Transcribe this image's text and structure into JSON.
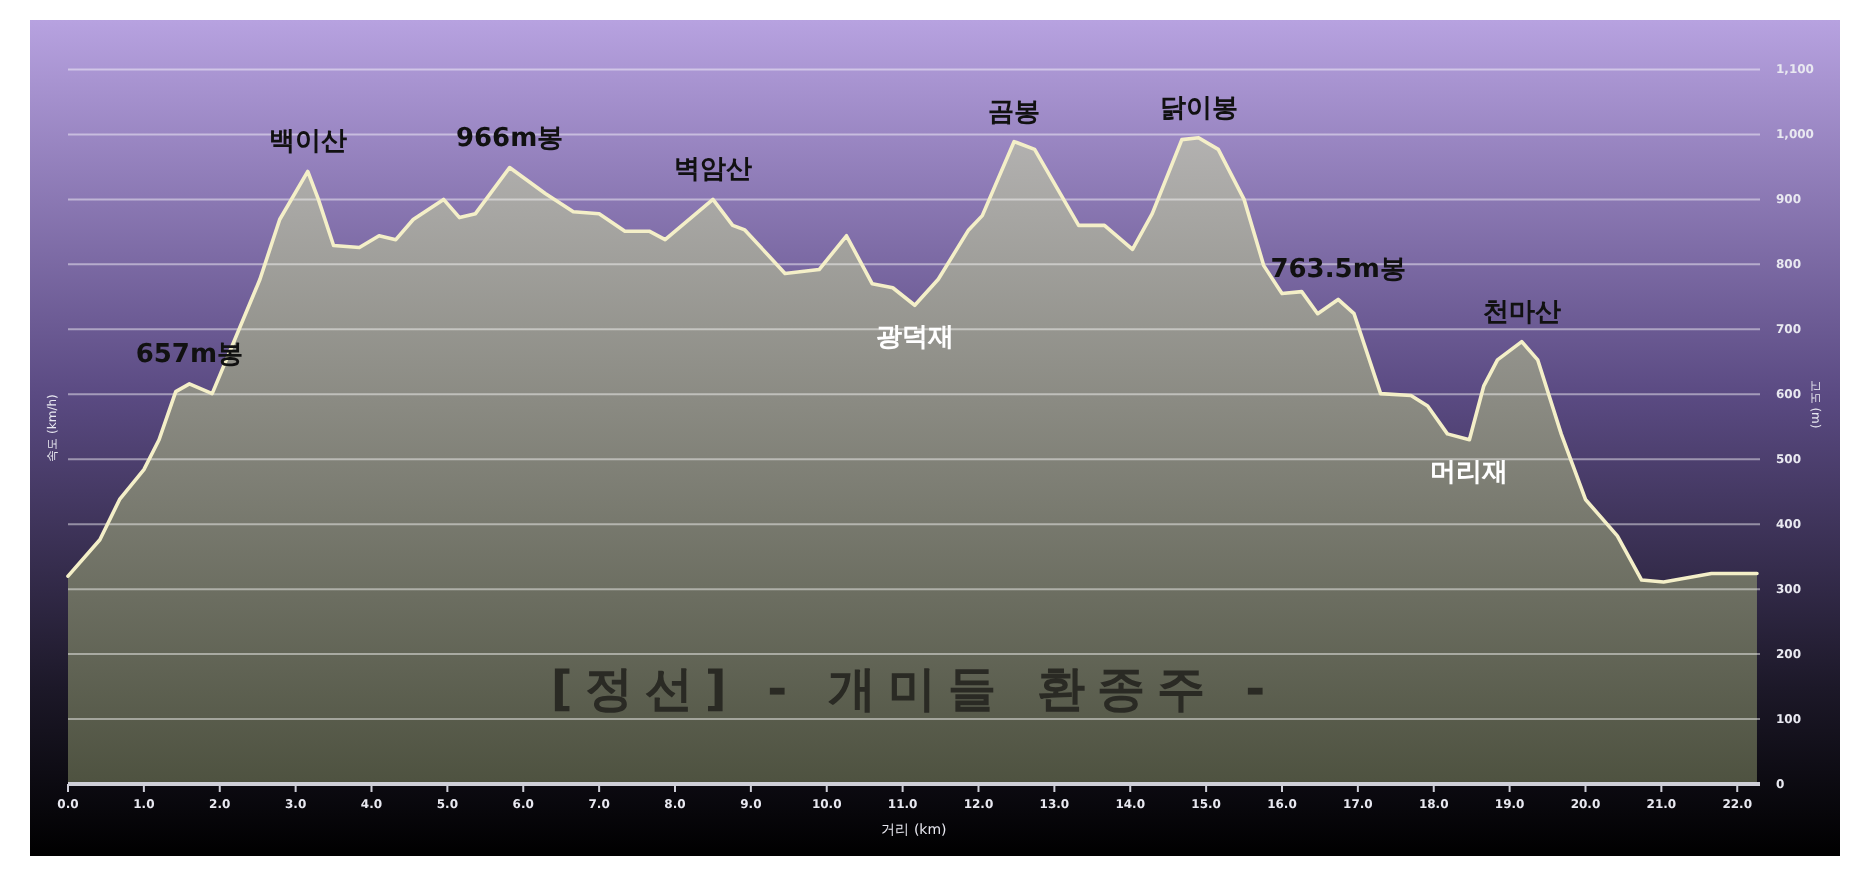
{
  "chart_data": {
    "type": "area",
    "title": "[정선] - 개미들 환종주 -",
    "xlabel": "거리 (km)",
    "ylabel": "고도 (m)",
    "x": [
      0,
      0.42,
      0.68,
      1.0,
      1.2,
      1.42,
      1.6,
      1.9,
      2.53,
      2.79,
      3.16,
      3.3,
      3.5,
      3.84,
      4.1,
      4.32,
      4.55,
      4.95,
      5.16,
      5.37,
      5.82,
      6.29,
      6.66,
      7.0,
      7.34,
      7.66,
      7.87,
      8.5,
      8.76,
      8.92,
      9.45,
      9.9,
      10.26,
      10.6,
      10.87,
      11.16,
      11.47,
      11.87,
      12.05,
      12.47,
      12.74,
      13.32,
      13.66,
      14.03,
      14.29,
      14.68,
      14.9,
      15.16,
      15.5,
      15.76,
      16.0,
      16.26,
      16.47,
      16.74,
      16.95,
      17.3,
      17.7,
      17.92,
      18.18,
      18.47,
      18.66,
      18.84,
      19.16,
      19.37,
      19.68,
      20.0,
      20.42,
      20.74,
      21.03,
      21.66,
      22.26
    ],
    "series": [
      {
        "color": "#f4efc8",
        "values": [
          320,
          376,
          438,
          484,
          530,
          604,
          616,
          601,
          777,
          869,
          943,
          900,
          829,
          826,
          844,
          838,
          869,
          900,
          872,
          878,
          949,
          909,
          881,
          878,
          851,
          851,
          838,
          900,
          860,
          853,
          786,
          792,
          844,
          770,
          764,
          737,
          777,
          853,
          875,
          989,
          977,
          860,
          860,
          823,
          878,
          992,
          995,
          977,
          900,
          798,
          755,
          758,
          724,
          746,
          724,
          601,
          598,
          582,
          539,
          530,
          613,
          653,
          681,
          653,
          539,
          438,
          382,
          314,
          311,
          324,
          324
        ]
      }
    ],
    "xlim": [
      0,
      22.3
    ],
    "xticks": [
      {
        "value": 0,
        "label": "0.0"
      },
      {
        "value": 1,
        "label": "1.0"
      },
      {
        "value": 2,
        "label": "2.0"
      },
      {
        "value": 3,
        "label": "3.0"
      },
      {
        "value": 4,
        "label": "4.0"
      },
      {
        "value": 5,
        "label": "5.0"
      },
      {
        "value": 6,
        "label": "6.0"
      },
      {
        "value": 7,
        "label": "7.0"
      },
      {
        "value": 8,
        "label": "8.0"
      },
      {
        "value": 9,
        "label": "9.0"
      },
      {
        "value": 10,
        "label": "10.0"
      },
      {
        "value": 11,
        "label": "11.0"
      },
      {
        "value": 12,
        "label": "12.0"
      },
      {
        "value": 13,
        "label": "13.0"
      },
      {
        "value": 14,
        "label": "14.0"
      },
      {
        "value": 15,
        "label": "15.0"
      },
      {
        "value": 16,
        "label": "16.0"
      },
      {
        "value": 17,
        "label": "17.0"
      },
      {
        "value": 18,
        "label": "18.0"
      },
      {
        "value": 19,
        "label": "19.0"
      },
      {
        "value": 20,
        "label": "20.0"
      },
      {
        "value": 21,
        "label": "21.0"
      },
      {
        "value": 22,
        "label": "22.0"
      }
    ],
    "ylim": [
      0,
      1170
    ],
    "yticks": [
      0,
      100,
      200,
      300,
      400,
      500,
      600,
      700,
      800,
      900,
      {
        "value": 1000,
        "label": "1,000"
      },
      {
        "value": 1100,
        "label": "1,100"
      }
    ],
    "grid": "y",
    "annotations": [
      "속도 (km/h)",
      {
        "text": "657m봉",
        "x": 1.6,
        "y": 616
      },
      {
        "text": "백이산",
        "x": 3.16,
        "y": 943
      },
      {
        "text": "966m봉",
        "x": 5.82,
        "y": 949
      },
      {
        "text": "벽암산",
        "x": 8.5,
        "y": 900
      },
      {
        "text": "광덕재",
        "x": 11.16,
        "y": 737
      },
      {
        "text": "곰봉",
        "x": 12.47,
        "y": 989
      },
      {
        "text": "닭이봉",
        "x": 14.9,
        "y": 995
      },
      {
        "text": "763.5m봉",
        "x": 16.74,
        "y": 746
      },
      {
        "text": "머리재",
        "x": 18.47,
        "y": 530
      },
      {
        "text": "천마산",
        "x": 19.16,
        "y": 681
      }
    ]
  }
}
